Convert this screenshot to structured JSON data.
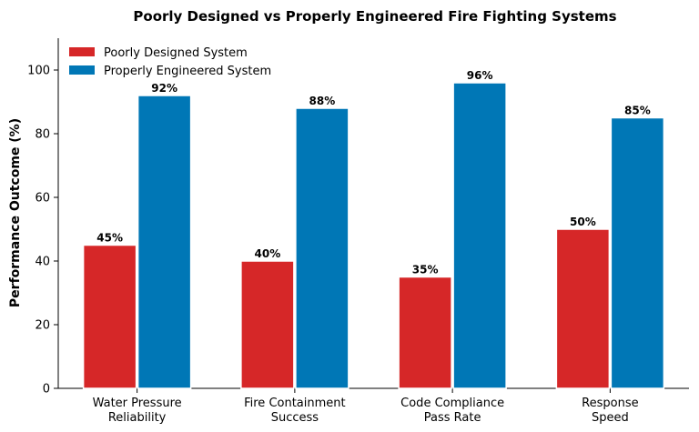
{
  "chart_data": {
    "type": "bar",
    "title": "Poorly Designed vs Properly Engineered Fire Fighting Systems",
    "xlabel": "",
    "ylabel": "Performance Outcome (%)",
    "ylim": [
      0,
      110
    ],
    "yticks": [
      0,
      20,
      40,
      60,
      80,
      100
    ],
    "categories": [
      [
        "Water Pressure",
        "Reliability"
      ],
      [
        "Fire Containment",
        "Success"
      ],
      [
        "Code Compliance",
        "Pass Rate"
      ],
      [
        "Response",
        "Speed"
      ]
    ],
    "series": [
      {
        "name": "Poorly Designed System",
        "color": "#d62728",
        "values": [
          45,
          40,
          35,
          50
        ],
        "labels": [
          "45%",
          "40%",
          "35%",
          "50%"
        ]
      },
      {
        "name": "Properly Engineered System",
        "color": "#0077b6",
        "values": [
          92,
          88,
          96,
          85
        ],
        "labels": [
          "92%",
          "88%",
          "96%",
          "85%"
        ]
      }
    ],
    "grid": false,
    "legend_position": "top-left"
  }
}
